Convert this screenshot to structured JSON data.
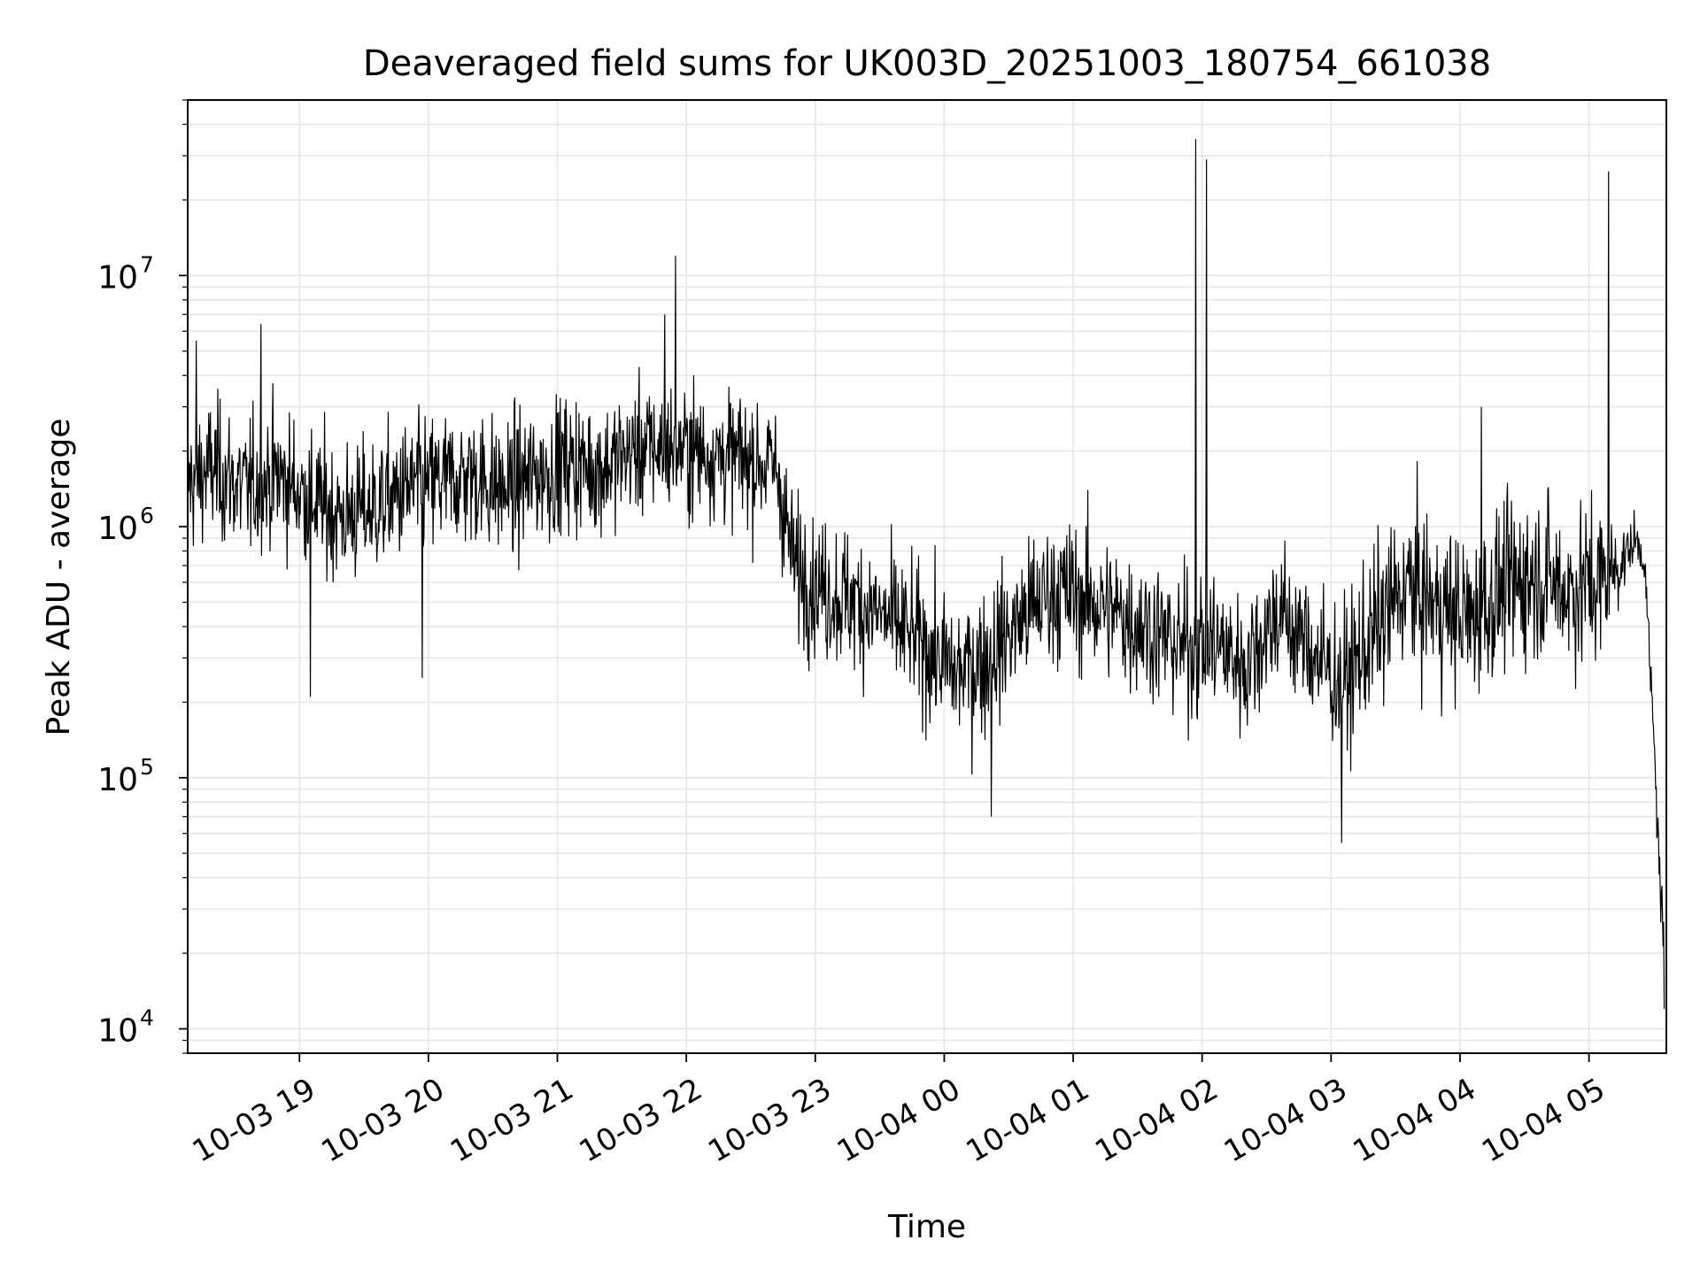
{
  "chart_data": {
    "type": "line",
    "title": "Deaveraged field sums for UK003D_20251003_180754_661038",
    "xlabel": "Time",
    "ylabel": "Peak ADU - average",
    "y_scale": "log",
    "ylim": [
      8000,
      50000000
    ],
    "xlim": [
      "2025-10-03 18:08",
      "2025-10-04 05:36"
    ],
    "x_ticks": [
      {
        "value": "2025-10-03 19:00",
        "label": "10-03 19"
      },
      {
        "value": "2025-10-03 20:00",
        "label": "10-03 20"
      },
      {
        "value": "2025-10-03 21:00",
        "label": "10-03 21"
      },
      {
        "value": "2025-10-03 22:00",
        "label": "10-03 22"
      },
      {
        "value": "2025-10-03 23:00",
        "label": "10-03 23"
      },
      {
        "value": "2025-10-04 00:00",
        "label": "10-04 00"
      },
      {
        "value": "2025-10-04 01:00",
        "label": "10-04 01"
      },
      {
        "value": "2025-10-04 02:00",
        "label": "10-04 02"
      },
      {
        "value": "2025-10-04 03:00",
        "label": "10-04 03"
      },
      {
        "value": "2025-10-04 04:00",
        "label": "10-04 04"
      },
      {
        "value": "2025-10-04 05:00",
        "label": "10-04 05"
      }
    ],
    "y_ticks": [
      {
        "value": 10000,
        "base": "10",
        "exp": "4"
      },
      {
        "value": 100000,
        "base": "10",
        "exp": "5"
      },
      {
        "value": 1000000,
        "base": "10",
        "exp": "6"
      },
      {
        "value": 10000000,
        "base": "10",
        "exp": "7"
      }
    ],
    "grid": true,
    "line_color": "#000000",
    "grid_color": "#e6e6e6",
    "series": [
      {
        "x": [
          "2025-10-03 18:08",
          "2025-10-03 18:20",
          "2025-10-03 18:35",
          "2025-10-03 18:50",
          "2025-10-03 19:05",
          "2025-10-03 19:20",
          "2025-10-03 19:35",
          "2025-10-03 19:50",
          "2025-10-03 20:05",
          "2025-10-03 20:20",
          "2025-10-03 20:35",
          "2025-10-03 20:50",
          "2025-10-03 21:05",
          "2025-10-03 21:20",
          "2025-10-03 21:35",
          "2025-10-03 21:50",
          "2025-10-03 22:05",
          "2025-10-03 22:20",
          "2025-10-03 22:35",
          "2025-10-03 22:42",
          "2025-10-03 22:50",
          "2025-10-03 23:05",
          "2025-10-03 23:20",
          "2025-10-03 23:35",
          "2025-10-03 23:50",
          "2025-10-04 00:05",
          "2025-10-04 00:20",
          "2025-10-04 00:35",
          "2025-10-04 00:50",
          "2025-10-04 01:05",
          "2025-10-04 01:20",
          "2025-10-04 01:35",
          "2025-10-04 01:50",
          "2025-10-04 02:05",
          "2025-10-04 02:20",
          "2025-10-04 02:35",
          "2025-10-04 02:50",
          "2025-10-04 03:05",
          "2025-10-04 03:20",
          "2025-10-04 03:35",
          "2025-10-04 03:50",
          "2025-10-04 04:05",
          "2025-10-04 04:20",
          "2025-10-04 04:35",
          "2025-10-04 04:50",
          "2025-10-04 05:05",
          "2025-10-04 05:15",
          "2025-10-04 05:22",
          "2025-10-04 05:26",
          "2025-10-04 05:30",
          "2025-10-04 05:33",
          "2025-10-04 05:35"
        ],
        "y": [
          1500000,
          1700000,
          1400000,
          1600000,
          1300000,
          1100000,
          1200000,
          1400000,
          1500000,
          1600000,
          1400000,
          1600000,
          1800000,
          1700000,
          2000000,
          2100000,
          2000000,
          1900000,
          1800000,
          1700000,
          700000,
          550000,
          500000,
          420000,
          340000,
          260000,
          300000,
          420000,
          560000,
          520000,
          450000,
          400000,
          330000,
          350000,
          280000,
          460000,
          330000,
          230000,
          380000,
          580000,
          480000,
          430000,
          560000,
          650000,
          560000,
          600000,
          720000,
          900000,
          700000,
          150000,
          40000,
          20000
        ],
        "spread": [
          0.35,
          0.35,
          0.35,
          0.35,
          0.35,
          0.35,
          0.35,
          0.35,
          0.35,
          0.35,
          0.35,
          0.35,
          0.35,
          0.33,
          0.33,
          0.33,
          0.33,
          0.33,
          0.33,
          0.33,
          0.35,
          0.35,
          0.35,
          0.35,
          0.35,
          0.37,
          0.37,
          0.37,
          0.37,
          0.37,
          0.37,
          0.37,
          0.37,
          0.37,
          0.37,
          0.37,
          0.37,
          0.37,
          0.42,
          0.42,
          0.42,
          0.42,
          0.42,
          0.42,
          0.42,
          0.42,
          0.2,
          0.1,
          0.08,
          0.15,
          0.15,
          0.15
        ],
        "spikes": [
          {
            "x": "2025-10-03 18:12",
            "y": 5500000
          },
          {
            "x": "2025-10-03 18:42",
            "y": 6400000
          },
          {
            "x": "2025-10-03 19:05",
            "y": 210000
          },
          {
            "x": "2025-10-03 19:57",
            "y": 250000
          },
          {
            "x": "2025-10-03 21:50",
            "y": 7000000
          },
          {
            "x": "2025-10-03 21:55",
            "y": 12000000
          },
          {
            "x": "2025-10-04 00:22",
            "y": 70000
          },
          {
            "x": "2025-10-04 01:57",
            "y": 35000000
          },
          {
            "x": "2025-10-04 02:02",
            "y": 29000000
          },
          {
            "x": "2025-10-04 03:05",
            "y": 55000
          },
          {
            "x": "2025-10-04 04:10",
            "y": 3000000
          },
          {
            "x": "2025-10-04 05:09",
            "y": 26000000
          },
          {
            "x": "2025-10-04 05:35",
            "y": 12000
          }
        ]
      }
    ]
  }
}
